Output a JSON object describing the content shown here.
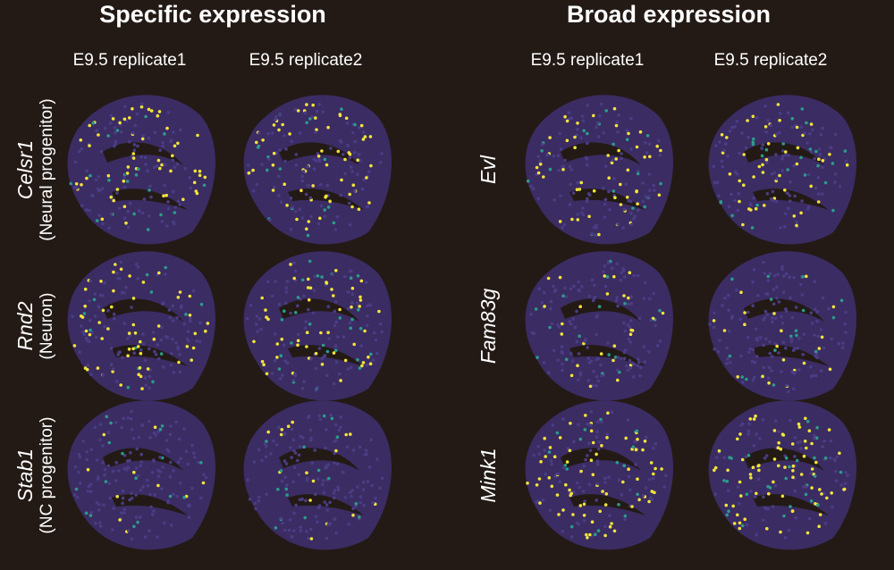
{
  "panels": [
    {
      "title": "Specific expression",
      "columns": [
        "E9.5 replicate1",
        "E9.5 replicate2"
      ],
      "rows": [
        {
          "gene": "Celsr1",
          "cell_type": "(Neural progenitor)"
        },
        {
          "gene": "Rnd2",
          "cell_type": "(Neuron)"
        },
        {
          "gene": "Stab1",
          "cell_type": "(NC progenitor)"
        }
      ]
    },
    {
      "title": "Broad expression",
      "columns": [
        "E9.5 replicate1",
        "E9.5 replicate2"
      ],
      "rows": [
        {
          "gene": "Evl"
        },
        {
          "gene": "Fam83g"
        },
        {
          "gene": "Mink1"
        }
      ]
    }
  ]
}
